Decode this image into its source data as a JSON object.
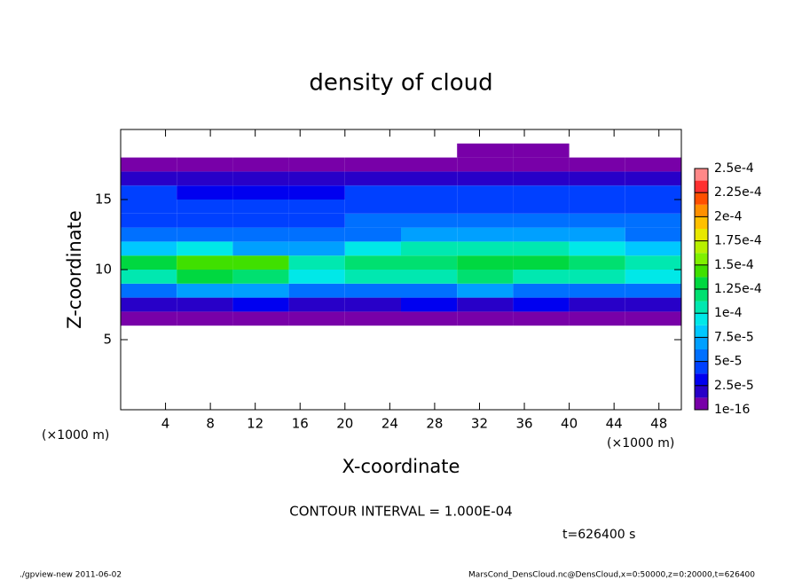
{
  "chart_data": {
    "type": "heatmap",
    "title": "density of cloud",
    "x_label": "X-coordinate",
    "y_label": "Z-coordinate",
    "annotations": [
      "(×1000 m)",
      "(×1000 m)",
      "CONTOUR INTERVAL = 1.000E-04",
      "t=626400 s"
    ],
    "footer_left": "./gpview-new  2011-06-02",
    "footer_right": "MarsCond_DensCloud.nc@DensCloud,x=0:50000,z=0:20000,t=626400",
    "xlim": [
      0,
      50
    ],
    "xticks": [
      4,
      8,
      12,
      16,
      20,
      24,
      28,
      32,
      36,
      40,
      44,
      48
    ],
    "ylim": [
      0,
      20
    ],
    "yticks": [
      5,
      10,
      15
    ],
    "x": [
      2.5,
      7.5,
      12.5,
      17.5,
      22.5,
      27.5,
      32.5,
      37.5,
      42.5,
      47.5
    ],
    "y": [
      6.5,
      7.5,
      8.5,
      9.5,
      10.5,
      11.5,
      12.5,
      13.5,
      14.5,
      15.5,
      16.5,
      17.5,
      18.5
    ],
    "values": [
      [
        5e-06,
        5e-06,
        5e-06,
        5e-06,
        5e-06,
        5e-06,
        5e-06,
        5e-06,
        5e-06,
        5e-06
      ],
      [
        2.2e-05,
        2e-05,
        2.5e-05,
        2e-05,
        2.2e-05,
        2.5e-05,
        2e-05,
        2.5e-05,
        2e-05,
        2.2e-05
      ],
      [
        6e-05,
        7e-05,
        6.5e-05,
        5e-05,
        5.5e-05,
        6e-05,
        6.5e-05,
        6e-05,
        5.5e-05,
        6e-05
      ],
      [
        0.00011,
        0.000125,
        0.00012,
        9e-05,
        0.0001,
        0.00011,
        0.000115,
        0.000105,
        0.0001,
        9.5e-05
      ],
      [
        0.00013,
        0.000145,
        0.00014,
        0.000105,
        0.000115,
        0.00012,
        0.00013,
        0.000125,
        0.000115,
        0.000105
      ],
      [
        8e-05,
        9e-05,
        7e-05,
        7e-05,
        9e-05,
        0.000105,
        0.000105,
        0.0001,
        9.5e-05,
        8.5e-05
      ],
      [
        6e-05,
        5.5e-05,
        5e-05,
        5e-05,
        6e-05,
        6.5e-05,
        6.5e-05,
        7e-05,
        6.5e-05,
        6e-05
      ],
      [
        4.5e-05,
        4.5e-05,
        4e-05,
        4.5e-05,
        5e-05,
        5e-05,
        5e-05,
        5.5e-05,
        5e-05,
        5e-05
      ],
      [
        4.5e-05,
        4e-05,
        4e-05,
        4e-05,
        4e-05,
        4.5e-05,
        4.5e-05,
        4.5e-05,
        4.5e-05,
        4.5e-05
      ],
      [
        3.8e-05,
        3.5e-05,
        3.5e-05,
        3.5e-05,
        3.8e-05,
        3.8e-05,
        3.8e-05,
        3.8e-05,
        3.8e-05,
        3.8e-05
      ],
      [
        2.2e-05,
        2e-05,
        2e-05,
        2e-05,
        2e-05,
        2e-05,
        2e-05,
        2e-05,
        2e-05,
        2e-05
      ],
      [
        6e-06,
        6e-06,
        6e-06,
        6e-06,
        6e-06,
        6e-06,
        6e-06,
        6e-06,
        6e-06,
        6e-06
      ],
      [
        0,
        0,
        0,
        0,
        0,
        0,
        3e-06,
        3e-06,
        0,
        0
      ]
    ],
    "clim": [
      0,
      0.00025
    ],
    "cticks": [
      {
        "value": 1e-16,
        "label": "1e-16"
      },
      {
        "value": 2.5e-05,
        "label": "2.5e-5"
      },
      {
        "value": 5e-05,
        "label": "5e-5"
      },
      {
        "value": 7.5e-05,
        "label": "7.5e-5"
      },
      {
        "value": 0.0001,
        "label": "1e-4"
      },
      {
        "value": 0.000125,
        "label": "1.25e-4"
      },
      {
        "value": 0.00015,
        "label": "1.5e-4"
      },
      {
        "value": 0.000175,
        "label": "1.75e-4"
      },
      {
        "value": 0.0002,
        "label": "2e-4"
      },
      {
        "value": 0.000225,
        "label": "2.25e-4"
      },
      {
        "value": 0.00025,
        "label": "2.5e-4"
      }
    ],
    "colors": [
      "#7800a8",
      "#2800c8",
      "#0000f0",
      "#0040ff",
      "#0070ff",
      "#00a0ff",
      "#00c8ff",
      "#00e8e8",
      "#00e8b0",
      "#00e070",
      "#00d840",
      "#40e000",
      "#80f000",
      "#b8f000",
      "#e8e800",
      "#ffc000",
      "#ff9000",
      "#ff5000",
      "#ff3030",
      "#ff8888"
    ]
  }
}
